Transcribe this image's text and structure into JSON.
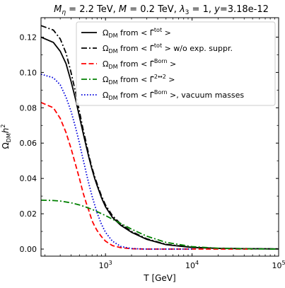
{
  "chart_data": {
    "type": "line",
    "title_parts": [
      {
        "text": "M",
        "style": "italic"
      },
      {
        "text": "η",
        "style": "sub-italic"
      },
      {
        "text": " = 2.2 TeV, ",
        "style": "normal"
      },
      {
        "text": "M",
        "style": "italic"
      },
      {
        "text": " = 0.2 TeV, ",
        "style": "normal"
      },
      {
        "text": "λ",
        "style": "italic"
      },
      {
        "text": "3",
        "style": "sub"
      },
      {
        "text": " = 1, ",
        "style": "normal"
      },
      {
        "text": "y",
        "style": "italic"
      },
      {
        "text": "=3.18e-12",
        "style": "normal"
      }
    ],
    "xlabel": "T [GeV]",
    "ylabel_parts": [
      {
        "text": "Ω",
        "style": "normal"
      },
      {
        "text": "DM",
        "style": "sub"
      },
      {
        "text": "h",
        "style": "italic"
      },
      {
        "text": "2",
        "style": "sup"
      }
    ],
    "x_scale": "log",
    "xlim": [
      180,
      100000
    ],
    "ylim": [
      -0.004,
      0.131
    ],
    "grid": false,
    "legend_position": "top-right",
    "x_ticks": [
      {
        "value": 1000,
        "base": "10",
        "exp": "3"
      },
      {
        "value": 10000,
        "base": "10",
        "exp": "4"
      },
      {
        "value": 100000,
        "base": "10",
        "exp": "5"
      }
    ],
    "y_ticks": [
      {
        "value": 0.0,
        "label": "0.00"
      },
      {
        "value": 0.02,
        "label": "0.02"
      },
      {
        "value": 0.04,
        "label": "0.04"
      },
      {
        "value": 0.06,
        "label": "0.06"
      },
      {
        "value": 0.08,
        "label": "0.08"
      },
      {
        "value": 0.1,
        "label": "0.10"
      },
      {
        "value": 0.12,
        "label": "0.12"
      }
    ],
    "series": [
      {
        "label_parts": [
          {
            "text": "Ω",
            "style": "normal"
          },
          {
            "text": "DM",
            "style": "sub"
          },
          {
            "text": " from ",
            "style": "normal"
          },
          {
            "text": "< ",
            "style": "normal"
          },
          {
            "text": "Γ̂",
            "style": "normal"
          },
          {
            "text": "tot",
            "style": "sup"
          },
          {
            "text": " >",
            "style": "normal"
          }
        ],
        "color": "#000000",
        "dash": "solid",
        "x": [
          180,
          250,
          300,
          350,
          400,
          450,
          500,
          550,
          600,
          650,
          700,
          750,
          800,
          900,
          1000,
          1200,
          1500,
          2000,
          3000,
          5000,
          10000,
          20000,
          50000,
          100000
        ],
        "y": [
          0.12,
          0.117,
          0.112,
          0.105,
          0.095,
          0.085,
          0.075,
          0.066,
          0.058,
          0.051,
          0.045,
          0.04,
          0.036,
          0.029,
          0.024,
          0.018,
          0.0135,
          0.0095,
          0.0055,
          0.0025,
          0.0009,
          0.0004,
          0.0002,
          0.0001
        ]
      },
      {
        "label_parts": [
          {
            "text": "Ω",
            "style": "normal"
          },
          {
            "text": "DM",
            "style": "sub"
          },
          {
            "text": " from ",
            "style": "normal"
          },
          {
            "text": "< ",
            "style": "normal"
          },
          {
            "text": "Γ̂",
            "style": "normal"
          },
          {
            "text": "tot",
            "style": "sup"
          },
          {
            "text": " >  w/o exp. suppr.",
            "style": "normal"
          }
        ],
        "color": "#000000",
        "dash": "dashdot",
        "x": [
          180,
          250,
          300,
          350,
          400,
          450,
          500,
          550,
          600,
          650,
          700,
          750,
          800,
          900,
          1000,
          1200,
          1500,
          2000,
          3000,
          5000,
          10000,
          20000,
          50000,
          100000
        ],
        "y": [
          0.1265,
          0.124,
          0.119,
          0.111,
          0.1,
          0.089,
          0.078,
          0.068,
          0.06,
          0.052,
          0.046,
          0.041,
          0.037,
          0.03,
          0.025,
          0.019,
          0.0142,
          0.01,
          0.0058,
          0.0027,
          0.001,
          0.0004,
          0.0002,
          0.0001
        ]
      },
      {
        "label_parts": [
          {
            "text": "Ω",
            "style": "normal"
          },
          {
            "text": "DM",
            "style": "sub"
          },
          {
            "text": " from ",
            "style": "normal"
          },
          {
            "text": "< ",
            "style": "normal"
          },
          {
            "text": "Γ̂",
            "style": "normal"
          },
          {
            "text": "Born",
            "style": "sup"
          },
          {
            "text": " >",
            "style": "normal"
          }
        ],
        "color": "#ff0000",
        "dash": "dashed",
        "x": [
          180,
          250,
          300,
          350,
          400,
          450,
          500,
          550,
          600,
          650,
          700,
          750,
          800,
          900,
          1000,
          1200,
          1500,
          2000,
          3000,
          5000,
          10000,
          20000,
          50000
        ],
        "y": [
          0.083,
          0.08,
          0.074,
          0.066,
          0.057,
          0.048,
          0.04,
          0.032,
          0.026,
          0.021,
          0.016,
          0.013,
          0.0105,
          0.007,
          0.0045,
          0.002,
          0.0008,
          0.0002,
          0.0,
          0.0,
          0.0,
          0.0,
          0.0
        ]
      },
      {
        "label_parts": [
          {
            "text": "Ω",
            "style": "normal"
          },
          {
            "text": "DM",
            "style": "sub"
          },
          {
            "text": " from ",
            "style": "normal"
          },
          {
            "text": "< ",
            "style": "normal"
          },
          {
            "text": "Γ̂",
            "style": "normal"
          },
          {
            "text": "2↔2",
            "style": "sup"
          },
          {
            "text": " >",
            "style": "normal"
          }
        ],
        "color": "#008000",
        "dash": "dashdot",
        "x": [
          180,
          250,
          300,
          400,
          500,
          600,
          700,
          800,
          1000,
          1500,
          2000,
          3000,
          5000,
          10000,
          20000,
          50000,
          100000
        ],
        "y": [
          0.0277,
          0.0275,
          0.0272,
          0.0262,
          0.025,
          0.0237,
          0.0225,
          0.0212,
          0.019,
          0.0145,
          0.0113,
          0.0073,
          0.0038,
          0.0014,
          0.0005,
          0.0001,
          0.0
        ]
      },
      {
        "label_parts": [
          {
            "text": "Ω",
            "style": "normal"
          },
          {
            "text": "DM",
            "style": "sub"
          },
          {
            "text": " from ",
            "style": "normal"
          },
          {
            "text": "< ",
            "style": "normal"
          },
          {
            "text": "Γ̂",
            "style": "normal"
          },
          {
            "text": "Born",
            "style": "sup"
          },
          {
            "text": " >, vacuum masses",
            "style": "normal"
          }
        ],
        "color": "#0000dd",
        "dash": "dotted",
        "x": [
          180,
          250,
          300,
          350,
          400,
          450,
          500,
          550,
          600,
          650,
          700,
          750,
          800,
          900,
          1000,
          1200,
          1500,
          2000,
          3000,
          5000,
          10000
        ],
        "y": [
          0.099,
          0.097,
          0.093,
          0.086,
          0.078,
          0.069,
          0.06,
          0.051,
          0.043,
          0.036,
          0.03,
          0.025,
          0.0205,
          0.014,
          0.0095,
          0.0045,
          0.0015,
          0.0003,
          0.0,
          0.0,
          0.0
        ]
      }
    ]
  }
}
